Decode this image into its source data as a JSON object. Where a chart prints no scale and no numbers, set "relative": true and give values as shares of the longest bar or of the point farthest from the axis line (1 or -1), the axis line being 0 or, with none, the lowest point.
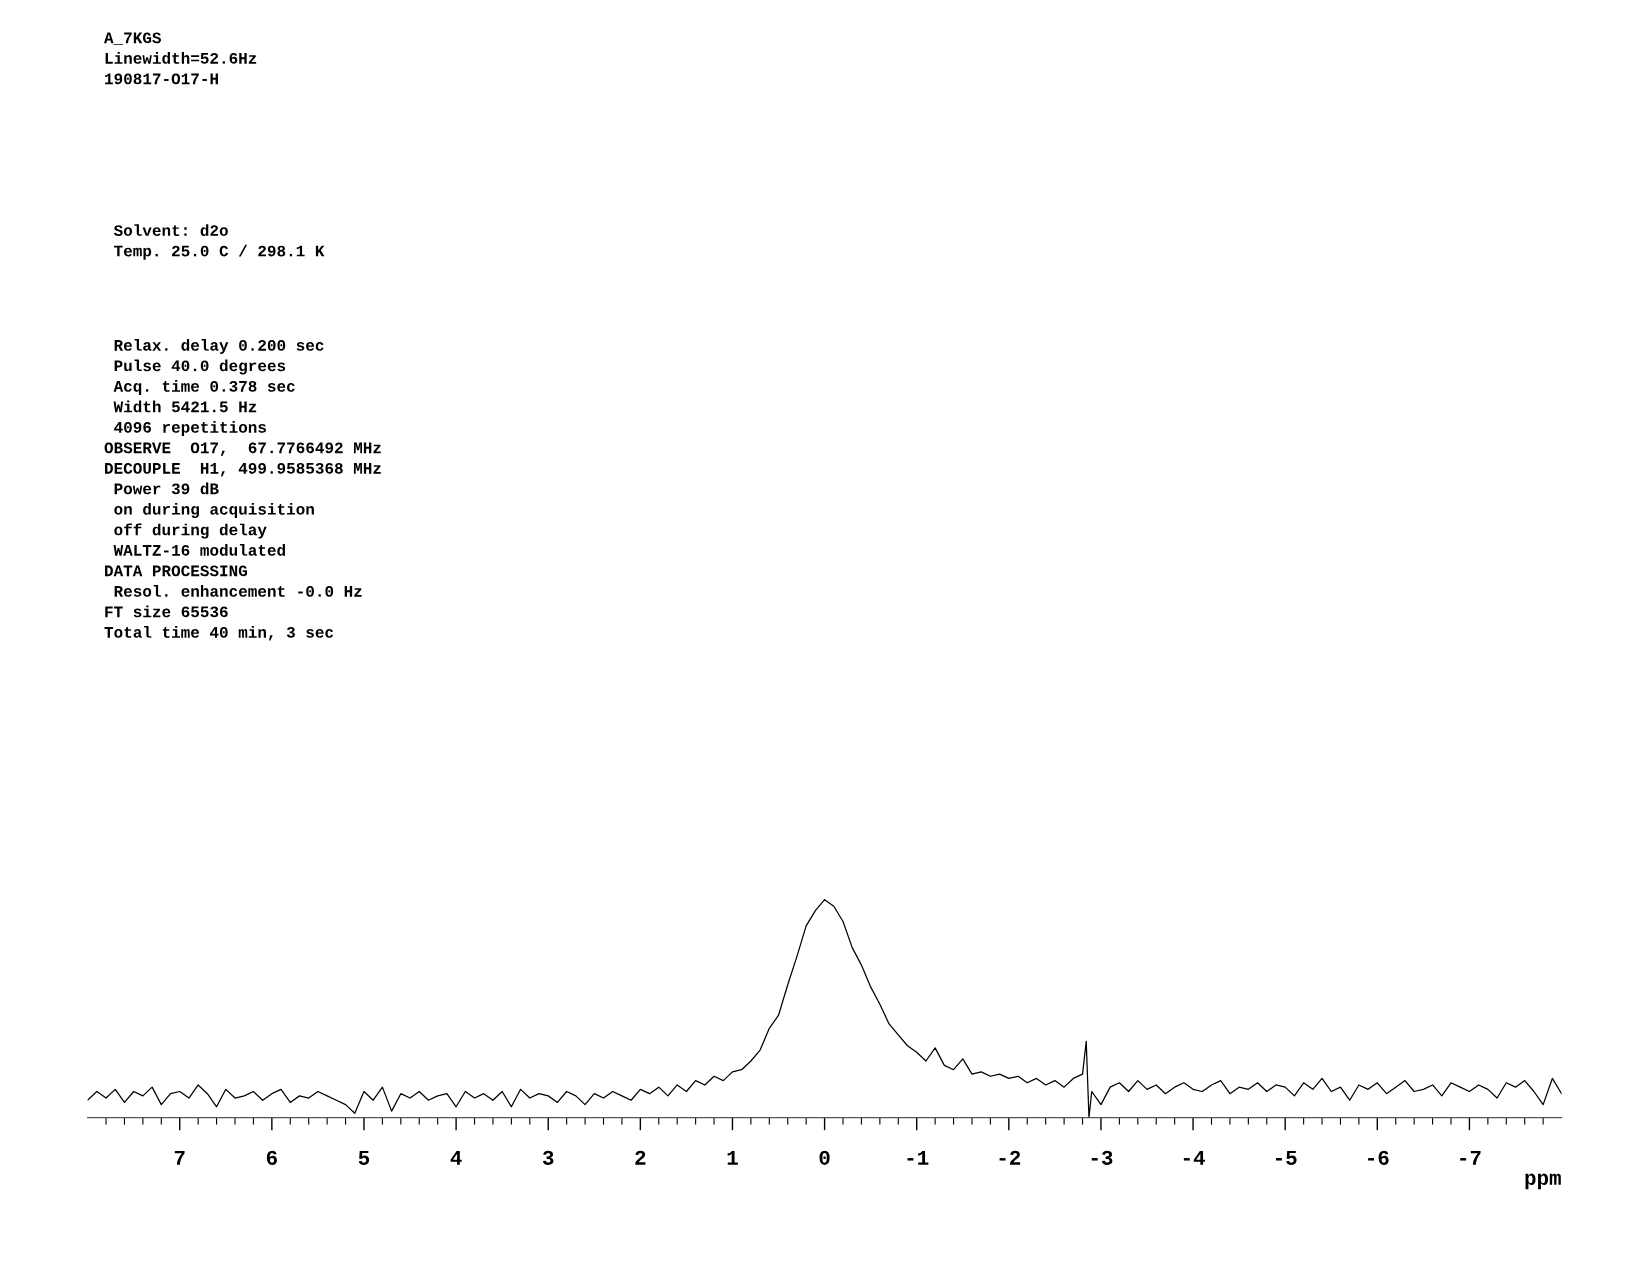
{
  "chart_data": {
    "type": "line",
    "relative": true,
    "xlabel": "ppm",
    "xlim": [
      8.0,
      -8.0
    ],
    "xticks": [
      7,
      6,
      5,
      4,
      3,
      2,
      1,
      0,
      -1,
      -2,
      -3,
      -4,
      -5,
      -6,
      -7,
      {
        "value": 7.8,
        "label": null
      },
      {
        "value": 7.6,
        "label": null
      },
      {
        "value": 7.4,
        "label": null
      },
      {
        "value": 7.2,
        "label": null
      },
      {
        "value": 6.8,
        "label": null
      },
      {
        "value": 6.6,
        "label": null
      },
      {
        "value": 6.4,
        "label": null
      },
      {
        "value": 6.2,
        "label": null
      },
      {
        "value": 5.8,
        "label": null
      },
      {
        "value": 5.6,
        "label": null
      },
      {
        "value": 5.4,
        "label": null
      },
      {
        "value": 5.2,
        "label": null
      },
      {
        "value": 4.8,
        "label": null
      },
      {
        "value": 4.6,
        "label": null
      },
      {
        "value": 4.4,
        "label": null
      },
      {
        "value": 4.2,
        "label": null
      },
      {
        "value": 3.8,
        "label": null
      },
      {
        "value": 3.6,
        "label": null
      },
      {
        "value": 3.4,
        "label": null
      },
      {
        "value": 3.2,
        "label": null
      },
      {
        "value": 2.8,
        "label": null
      },
      {
        "value": 2.6,
        "label": null
      },
      {
        "value": 2.4,
        "label": null
      },
      {
        "value": 2.2,
        "label": null
      },
      {
        "value": 1.8,
        "label": null
      },
      {
        "value": 1.6,
        "label": null
      },
      {
        "value": 1.4,
        "label": null
      },
      {
        "value": 1.2,
        "label": null
      },
      {
        "value": 0.8,
        "label": null
      },
      {
        "value": 0.6,
        "label": null
      },
      {
        "value": 0.4,
        "label": null
      },
      {
        "value": 0.2,
        "label": null
      },
      {
        "value": -0.2,
        "label": null
      },
      {
        "value": -0.4,
        "label": null
      },
      {
        "value": -0.6,
        "label": null
      },
      {
        "value": -0.8,
        "label": null
      },
      {
        "value": -1.2,
        "label": null
      },
      {
        "value": -1.4,
        "label": null
      },
      {
        "value": -1.6,
        "label": null
      },
      {
        "value": -1.8,
        "label": null
      },
      {
        "value": -2.2,
        "label": null
      },
      {
        "value": -2.4,
        "label": null
      },
      {
        "value": -2.6,
        "label": null
      },
      {
        "value": -2.8,
        "label": null
      },
      {
        "value": -3.2,
        "label": null
      },
      {
        "value": -3.4,
        "label": null
      },
      {
        "value": -3.6,
        "label": null
      },
      {
        "value": -3.8,
        "label": null
      },
      {
        "value": -4.2,
        "label": null
      },
      {
        "value": -4.4,
        "label": null
      },
      {
        "value": -4.6,
        "label": null
      },
      {
        "value": -4.8,
        "label": null
      },
      {
        "value": -5.2,
        "label": null
      },
      {
        "value": -5.4,
        "label": null
      },
      {
        "value": -5.6,
        "label": null
      },
      {
        "value": -5.8,
        "label": null
      },
      {
        "value": -6.2,
        "label": null
      },
      {
        "value": -6.4,
        "label": null
      },
      {
        "value": -6.6,
        "label": null
      },
      {
        "value": -6.8,
        "label": null
      },
      {
        "value": -7.2,
        "label": null
      },
      {
        "value": -7.4,
        "label": null
      },
      {
        "value": -7.6,
        "label": null
      },
      {
        "value": -7.8,
        "label": null
      }
    ],
    "grid": false,
    "legend": false,
    "marker": "none",
    "line_style": "solid",
    "annotations": [
      "A_7KGS",
      "Linewidth=52.6Hz",
      "190817-O17-H",
      " Solvent: d2o",
      " Temp. 25.0 C / 298.1 K",
      " Relax. delay 0.200 sec",
      " Pulse 40.0 degrees",
      " Acq. time 0.378 sec",
      " Width 5421.5 Hz",
      " 4096 repetitions",
      "OBSERVE  O17,  67.7766492 MHz",
      "DECOUPLE  H1, 499.9585368 MHz",
      " Power 39 dB",
      " on during acquisition",
      " off during delay",
      " WALTZ-16 modulated",
      "DATA PROCESSING",
      " Resol. enhancement -0.0 Hz",
      "FT size 65536",
      "Total time 40 min, 3 sec"
    ],
    "series": [
      {
        "color": "#000000",
        "x": [
          8.0,
          7.9,
          7.8,
          7.7,
          7.6,
          7.5,
          7.4,
          7.3,
          7.2,
          7.1,
          7.0,
          6.9,
          6.8,
          6.7,
          6.6,
          6.5,
          6.4,
          6.3,
          6.2,
          6.1,
          6.0,
          5.9,
          5.8,
          5.7,
          5.6,
          5.5,
          5.4,
          5.3,
          5.2,
          5.1,
          5.0,
          4.9,
          4.8,
          4.7,
          4.6,
          4.5,
          4.4,
          4.3,
          4.2,
          4.1,
          4.0,
          3.9,
          3.8,
          3.7,
          3.6,
          3.5,
          3.4,
          3.3,
          3.2,
          3.1,
          3.0,
          2.9,
          2.8,
          2.7,
          2.6,
          2.5,
          2.4,
          2.3,
          2.2,
          2.1,
          2.0,
          1.9,
          1.8,
          1.7,
          1.6,
          1.5,
          1.4,
          1.3,
          1.2,
          1.1,
          1.0,
          0.9,
          0.8,
          0.7,
          0.6,
          0.5,
          0.4,
          0.3,
          0.2,
          0.1,
          0.0,
          -0.1,
          -0.2,
          -0.3,
          -0.4,
          -0.5,
          -0.6,
          -0.7,
          -0.8,
          -0.9,
          -1.0,
          -1.1,
          -1.2,
          -1.3,
          -1.4,
          -1.5,
          -1.6,
          -1.7,
          -1.8,
          -1.9,
          -2.0,
          -2.1,
          -2.2,
          -2.3,
          -2.4,
          -2.5,
          -2.6,
          -2.7,
          -2.8,
          -2.84,
          -2.87,
          -2.9,
          -3.0,
          -3.1,
          -3.2,
          -3.3,
          -3.4,
          -3.5,
          -3.6,
          -3.7,
          -3.8,
          -3.9,
          -4.0,
          -4.1,
          -4.2,
          -4.3,
          -4.4,
          -4.5,
          -4.6,
          -4.7,
          -4.8,
          -4.9,
          -5.0,
          -5.1,
          -5.2,
          -5.3,
          -5.4,
          -5.5,
          -5.6,
          -5.7,
          -5.8,
          -5.9,
          -6.0,
          -6.1,
          -6.2,
          -6.3,
          -6.4,
          -6.5,
          -6.6,
          -6.7,
          -6.8,
          -6.9,
          -7.0,
          -7.1,
          -7.2,
          -7.3,
          -7.4,
          -7.5,
          -7.6,
          -7.7,
          -7.8,
          -7.9,
          -8.0
        ],
        "values": [
          0.08,
          0.12,
          0.09,
          0.13,
          0.07,
          0.12,
          0.1,
          0.14,
          0.06,
          0.11,
          0.12,
          0.09,
          0.15,
          0.11,
          0.05,
          0.13,
          0.09,
          0.1,
          0.12,
          0.08,
          0.11,
          0.13,
          0.07,
          0.1,
          0.09,
          0.12,
          0.1,
          0.08,
          0.06,
          0.02,
          0.12,
          0.08,
          0.14,
          0.03,
          0.11,
          0.09,
          0.12,
          0.08,
          0.1,
          0.11,
          0.05,
          0.12,
          0.09,
          0.11,
          0.08,
          0.12,
          0.05,
          0.13,
          0.09,
          0.11,
          0.1,
          0.07,
          0.12,
          0.1,
          0.06,
          0.11,
          0.09,
          0.12,
          0.1,
          0.08,
          0.13,
          0.11,
          0.14,
          0.1,
          0.15,
          0.12,
          0.17,
          0.15,
          0.19,
          0.17,
          0.21,
          0.22,
          0.26,
          0.31,
          0.41,
          0.47,
          0.61,
          0.74,
          0.88,
          0.95,
          1.0,
          0.97,
          0.9,
          0.78,
          0.7,
          0.6,
          0.52,
          0.43,
          0.38,
          0.33,
          0.3,
          0.26,
          0.32,
          0.24,
          0.22,
          0.27,
          0.2,
          0.21,
          0.19,
          0.2,
          0.18,
          0.19,
          0.16,
          0.18,
          0.15,
          0.17,
          0.14,
          0.18,
          0.2,
          0.35,
          0.0,
          0.12,
          0.06,
          0.14,
          0.16,
          0.12,
          0.17,
          0.13,
          0.15,
          0.11,
          0.14,
          0.16,
          0.13,
          0.12,
          0.15,
          0.17,
          0.11,
          0.14,
          0.13,
          0.16,
          0.12,
          0.15,
          0.14,
          0.1,
          0.16,
          0.13,
          0.18,
          0.12,
          0.14,
          0.08,
          0.15,
          0.13,
          0.16,
          0.11,
          0.14,
          0.17,
          0.12,
          0.13,
          0.15,
          0.1,
          0.16,
          0.14,
          0.12,
          0.15,
          0.13,
          0.09,
          0.16,
          0.14,
          0.17,
          0.12,
          0.06,
          0.18,
          0.11
        ]
      }
    ]
  }
}
